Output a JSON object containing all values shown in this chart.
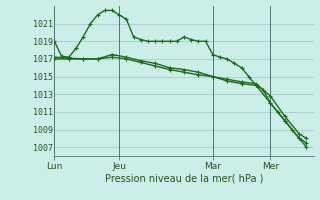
{
  "background_color": "#cceee8",
  "grid_color": "#aacccc",
  "line_color": "#1a6b1a",
  "xlabel": "Pression niveau de la mer( hPa )",
  "ylim": [
    1006,
    1023
  ],
  "yticks": [
    1007,
    1009,
    1011,
    1013,
    1015,
    1017,
    1019,
    1021
  ],
  "xtick_labels": [
    "Lun",
    "Jeu",
    "Mar",
    "Mer"
  ],
  "xtick_positions": [
    0,
    9,
    22,
    30
  ],
  "vline_positions": [
    0,
    9,
    22,
    30
  ],
  "xlim": [
    0,
    36
  ],
  "series1_x": [
    0,
    1,
    2,
    3,
    4,
    5,
    6,
    7,
    8,
    9,
    10,
    11,
    12,
    13,
    14,
    15,
    16,
    17,
    18,
    19,
    20,
    21,
    22,
    23,
    24,
    25,
    26,
    27,
    28,
    29,
    30,
    31,
    32,
    33,
    34,
    35
  ],
  "series1_y": [
    1019,
    1017.3,
    1017.2,
    1018.2,
    1019.5,
    1021.0,
    1022.0,
    1022.5,
    1022.5,
    1022.0,
    1021.5,
    1019.5,
    1019.2,
    1019.0,
    1019.0,
    1019.0,
    1019.0,
    1019.0,
    1019.5,
    1019.2,
    1019.0,
    1019.0,
    1017.5,
    1017.2,
    1017.0,
    1016.5,
    1016.0,
    1015.0,
    1014.0,
    1013.5,
    1012.0,
    1011.0,
    1010.0,
    1009.0,
    1008.0,
    1007.5
  ],
  "series2_x": [
    0,
    2,
    4,
    6,
    8,
    10,
    12,
    14,
    16,
    18,
    20,
    22,
    24,
    26,
    28,
    30,
    32,
    34,
    35
  ],
  "series2_y": [
    1017.0,
    1017.0,
    1017.0,
    1017.0,
    1017.5,
    1017.2,
    1016.8,
    1016.5,
    1016.0,
    1015.8,
    1015.5,
    1015.0,
    1014.5,
    1014.2,
    1014.0,
    1012.0,
    1010.0,
    1008.0,
    1007.0
  ],
  "series3_x": [
    0,
    2,
    4,
    6,
    8,
    10,
    12,
    14,
    16,
    18,
    20,
    22,
    24,
    26,
    28,
    30,
    32,
    34,
    35
  ],
  "series3_y": [
    1017.2,
    1017.1,
    1017.0,
    1017.0,
    1017.2,
    1017.0,
    1016.6,
    1016.2,
    1015.8,
    1015.5,
    1015.2,
    1015.0,
    1014.7,
    1014.4,
    1014.2,
    1012.8,
    1010.5,
    1008.5,
    1008.0
  ]
}
